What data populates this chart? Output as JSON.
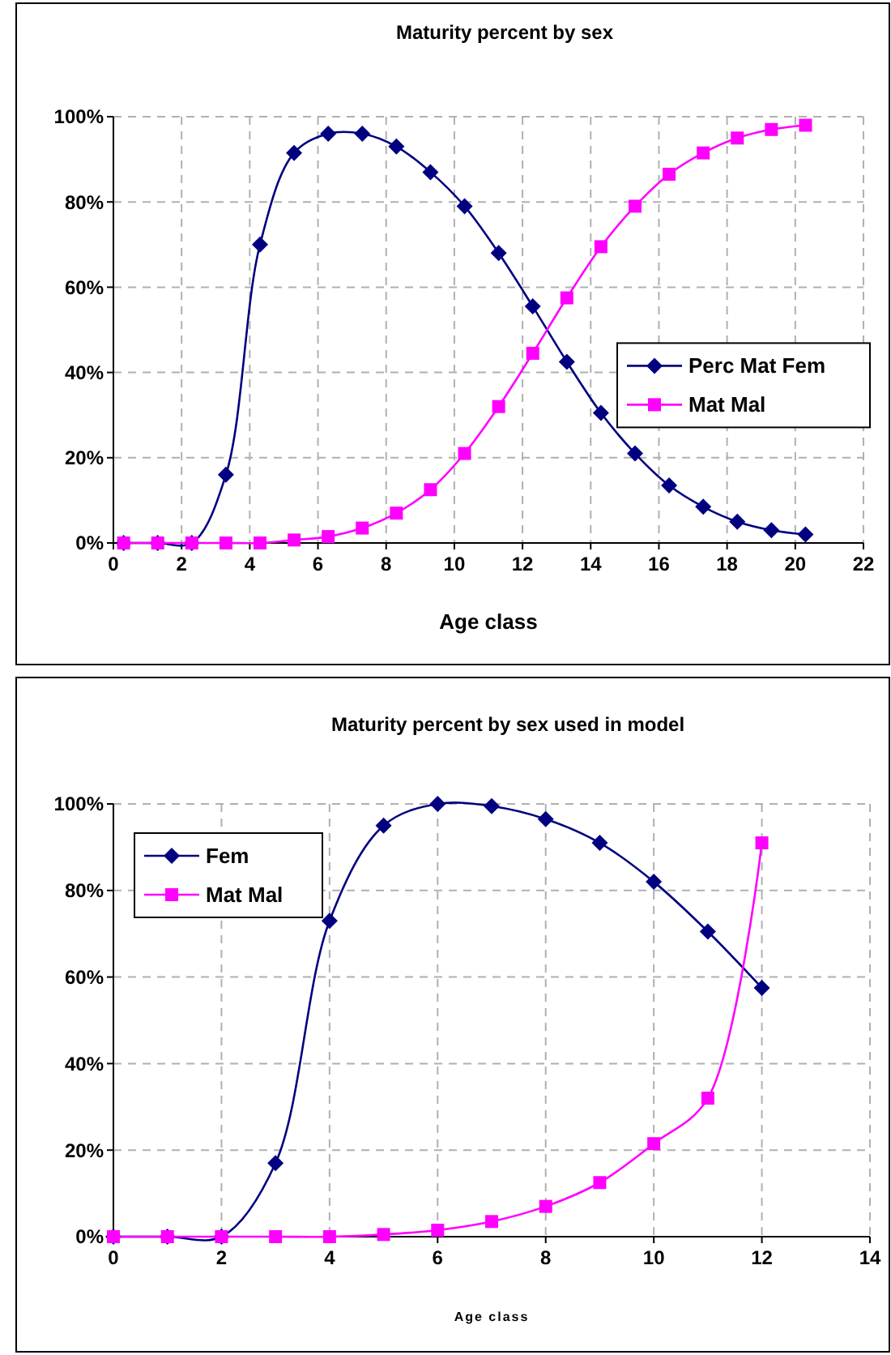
{
  "chart_data": [
    {
      "type": "line",
      "title": "Maturity percent by sex",
      "xlabel": "Age class",
      "x": [
        0.3,
        1.3,
        2.3,
        3.3,
        4.3,
        5.3,
        6.3,
        7.3,
        8.3,
        9.3,
        10.3,
        11.3,
        12.3,
        13.3,
        14.3,
        15.3,
        16.3,
        17.3,
        18.3,
        19.3,
        20.3
      ],
      "xlim": [
        0,
        22
      ],
      "xticks": [
        0,
        2,
        4,
        6,
        8,
        10,
        12,
        14,
        16,
        18,
        20,
        22
      ],
      "ylim": [
        0,
        100
      ],
      "yticks": [
        {
          "value": 0,
          "label": "0%"
        },
        {
          "value": 20,
          "label": "20%"
        },
        {
          "value": 40,
          "label": "40%"
        },
        {
          "value": 60,
          "label": "60%"
        },
        {
          "value": 80,
          "label": "80%"
        },
        {
          "value": 100,
          "label": "100%"
        }
      ],
      "grid": true,
      "legend": "right",
      "series": [
        {
          "name": "Perc Mat Fem",
          "color": "#000080",
          "marker": "diamond",
          "values": [
            0,
            0,
            0,
            16,
            70,
            91.5,
            96,
            96,
            93,
            87,
            79,
            68,
            55.5,
            42.5,
            30.5,
            21,
            13.5,
            8.5,
            5,
            3,
            2
          ]
        },
        {
          "name": "Mat Mal",
          "color": "#ff00ff",
          "marker": "square",
          "values": [
            0,
            0,
            0,
            0,
            0,
            0.7,
            1.5,
            3.5,
            7,
            12.5,
            21,
            32,
            44.5,
            57.5,
            69.5,
            79,
            86.5,
            91.5,
            95,
            97,
            98
          ]
        }
      ]
    },
    {
      "type": "line",
      "title": "Maturity percent by sex used in model",
      "xlabel": "Age class",
      "x": [
        0,
        1,
        2,
        3,
        4,
        5,
        6,
        7,
        8,
        9,
        10,
        11,
        12
      ],
      "xlim": [
        0,
        14
      ],
      "xticks": [
        0,
        2,
        4,
        6,
        8,
        10,
        12,
        14
      ],
      "ylim": [
        0,
        100
      ],
      "yticks": [
        {
          "value": 0,
          "label": "0%"
        },
        {
          "value": 20,
          "label": "20%"
        },
        {
          "value": 40,
          "label": "40%"
        },
        {
          "value": 60,
          "label": "60%"
        },
        {
          "value": 80,
          "label": "80%"
        },
        {
          "value": 100,
          "label": "100%"
        }
      ],
      "grid": true,
      "legend": "top left",
      "series": [
        {
          "name": "Fem",
          "color": "#000080",
          "marker": "diamond",
          "values": [
            0,
            0,
            0,
            17,
            73,
            95,
            100,
            99.5,
            96.5,
            91,
            82,
            70.5,
            57.5
          ]
        },
        {
          "name": "Mat Mal",
          "color": "#ff00ff",
          "marker": "square",
          "values": [
            0,
            0,
            0,
            0,
            0,
            0.5,
            1.5,
            3.5,
            7,
            12.5,
            21.5,
            32,
            91
          ]
        }
      ]
    }
  ]
}
